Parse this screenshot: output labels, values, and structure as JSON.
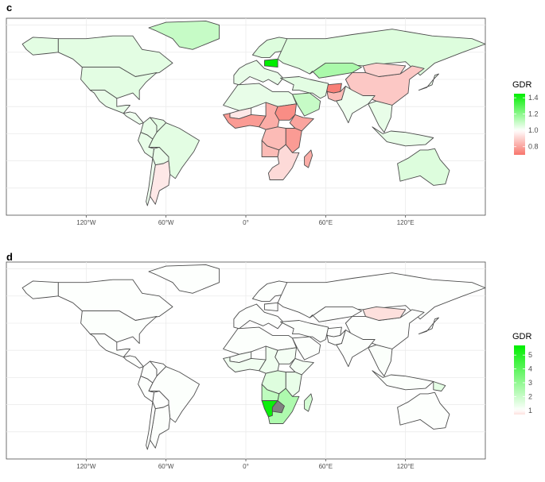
{
  "panels": [
    {
      "letter": "c",
      "legend": {
        "title": "GDR",
        "ticks": [
          "1.4",
          "1.2",
          "1.0",
          "0.8"
        ],
        "tick_values": [
          1.4,
          1.2,
          1.0,
          0.8
        ],
        "min": 0.7,
        "max": 1.45,
        "low_color": "#f8766d",
        "mid_color": "#ffffff",
        "high_color": "#00ee00",
        "mid_value": 1.0
      },
      "x_ticks": [
        "120°W",
        "60°W",
        "0°",
        "60°E",
        "120°E"
      ],
      "regions": [
        {
          "name": "greenland",
          "value": 1.1
        },
        {
          "name": "canada",
          "value": 1.05
        },
        {
          "name": "alaska",
          "value": 1.05
        },
        {
          "name": "usa",
          "value": 1.05
        },
        {
          "name": "mexico",
          "value": 1.04
        },
        {
          "name": "central-america",
          "value": 1.03
        },
        {
          "name": "colombia",
          "value": 1.04
        },
        {
          "name": "venezuela",
          "value": 1.05
        },
        {
          "name": "brazil",
          "value": 1.05
        },
        {
          "name": "peru",
          "value": 1.04
        },
        {
          "name": "bolivia",
          "value": 1.04
        },
        {
          "name": "argentina",
          "value": 0.95
        },
        {
          "name": "chile",
          "value": 1.03
        },
        {
          "name": "europe-west",
          "value": 1.04
        },
        {
          "name": "scandinavia",
          "value": 1.06
        },
        {
          "name": "poland",
          "value": 1.45
        },
        {
          "name": "russia",
          "value": 1.06
        },
        {
          "name": "kazakhstan",
          "value": 1.15
        },
        {
          "name": "china",
          "value": 0.88
        },
        {
          "name": "mongolia",
          "value": 0.9
        },
        {
          "name": "afghanistan",
          "value": 0.72
        },
        {
          "name": "pakistan",
          "value": 0.85
        },
        {
          "name": "india",
          "value": 1.03
        },
        {
          "name": "middle-east",
          "value": 1.05
        },
        {
          "name": "saudi-arabia",
          "value": 1.1
        },
        {
          "name": "north-africa",
          "value": 1.04
        },
        {
          "name": "mali",
          "value": 0.95
        },
        {
          "name": "west-africa",
          "value": 0.78
        },
        {
          "name": "central-africa",
          "value": 0.82
        },
        {
          "name": "sudan",
          "value": 0.75
        },
        {
          "name": "ethiopia",
          "value": 0.8
        },
        {
          "name": "east-africa",
          "value": 0.78
        },
        {
          "name": "congo",
          "value": 0.85
        },
        {
          "name": "angola",
          "value": 0.85
        },
        {
          "name": "southern-africa",
          "value": 0.92
        },
        {
          "name": "madagascar",
          "value": 0.82
        },
        {
          "name": "southeast-asia",
          "value": 1.04
        },
        {
          "name": "indonesia",
          "value": 1.04
        },
        {
          "name": "australia",
          "value": 1.06
        },
        {
          "name": "japan",
          "value": 1.03
        }
      ]
    },
    {
      "letter": "d",
      "legend": {
        "title": "GDR",
        "ticks": [
          "5",
          "4",
          "3",
          "2",
          "1"
        ],
        "tick_values": [
          5,
          4,
          3,
          2,
          1
        ],
        "min": 0.7,
        "max": 5.7,
        "low_color": "#fde0dd",
        "mid_color": "#ffffff",
        "high_color": "#00ee00",
        "mid_value": 1.0
      },
      "x_ticks": [
        "120°W",
        "60°W",
        "0°",
        "60°E",
        "120°E"
      ],
      "regions": [
        {
          "name": "greenland",
          "value": 1.03
        },
        {
          "name": "canada",
          "value": 1.03
        },
        {
          "name": "alaska",
          "value": 1.03
        },
        {
          "name": "usa",
          "value": 1.05
        },
        {
          "name": "mexico",
          "value": 1.04
        },
        {
          "name": "central-america",
          "value": 1.04
        },
        {
          "name": "colombia",
          "value": 1.03
        },
        {
          "name": "venezuela",
          "value": 1.03
        },
        {
          "name": "brazil",
          "value": 1.06
        },
        {
          "name": "peru",
          "value": 1.03
        },
        {
          "name": "bolivia",
          "value": 1.03
        },
        {
          "name": "argentina",
          "value": 1.05
        },
        {
          "name": "chile",
          "value": 1.03
        },
        {
          "name": "europe-west",
          "value": 1.03
        },
        {
          "name": "scandinavia",
          "value": 1.03
        },
        {
          "name": "poland",
          "value": 1.03
        },
        {
          "name": "russia",
          "value": 1.03
        },
        {
          "name": "kazakhstan",
          "value": 1.03
        },
        {
          "name": "china",
          "value": 1.03
        },
        {
          "name": "mongolia",
          "value": 0.7
        },
        {
          "name": "afghanistan",
          "value": 1.03
        },
        {
          "name": "pakistan",
          "value": 1.03
        },
        {
          "name": "india",
          "value": 1.05
        },
        {
          "name": "middle-east",
          "value": 1.05
        },
        {
          "name": "saudi-arabia",
          "value": 1.05
        },
        {
          "name": "north-africa",
          "value": 1.06
        },
        {
          "name": "mali",
          "value": 1.15
        },
        {
          "name": "west-africa",
          "value": 1.25
        },
        {
          "name": "central-africa",
          "value": 1.3
        },
        {
          "name": "sudan",
          "value": 1.2
        },
        {
          "name": "ethiopia",
          "value": 1.2
        },
        {
          "name": "east-africa",
          "value": 1.4
        },
        {
          "name": "congo",
          "value": 1.6
        },
        {
          "name": "angola",
          "value": 2.2
        },
        {
          "name": "southern-africa",
          "value": 2.5
        },
        {
          "name": "namibia",
          "value": 5.5
        },
        {
          "name": "botswana",
          "value": null
        },
        {
          "name": "madagascar",
          "value": 1.8
        },
        {
          "name": "southeast-asia",
          "value": 1.08
        },
        {
          "name": "indonesia",
          "value": 1.06
        },
        {
          "name": "png",
          "value": 1.5
        },
        {
          "name": "australia",
          "value": 1.03
        },
        {
          "name": "japan",
          "value": 1.03
        }
      ]
    }
  ]
}
